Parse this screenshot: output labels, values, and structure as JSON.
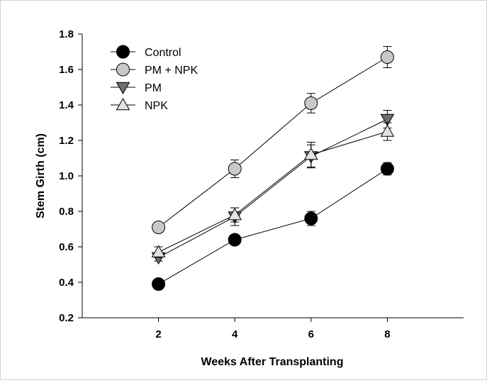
{
  "chart_data": {
    "type": "line",
    "title": "",
    "xlabel": "Weeks After Transplanting",
    "ylabel": "Stem Girth (cm)",
    "xlim": [
      0,
      10
    ],
    "ylim": [
      0.2,
      1.8
    ],
    "xticks": [
      "2",
      "4",
      "6",
      "8"
    ],
    "yticks": [
      "0.2",
      "0.4",
      "0.6",
      "0.8",
      "1.0",
      "1.2",
      "1.4",
      "1.6",
      "1.8"
    ],
    "x": [
      2,
      4,
      6,
      8
    ],
    "grid": false,
    "legend_position": "top-left",
    "series": [
      {
        "name": "Control",
        "marker": "circle",
        "color": "#000000",
        "values": [
          0.39,
          0.64,
          0.76,
          1.04
        ],
        "errors": [
          0.015,
          0.015,
          0.04,
          0.035
        ]
      },
      {
        "name": "PM + NPK",
        "marker": "circle",
        "color": "#c8c8c8",
        "values": [
          0.71,
          1.04,
          1.41,
          1.67
        ],
        "errors": [
          0.01,
          0.05,
          0.055,
          0.06
        ]
      },
      {
        "name": "PM",
        "marker": "triangle-down",
        "color": "#6e6e6e",
        "values": [
          0.54,
          0.77,
          1.11,
          1.32
        ],
        "errors": [
          0.02,
          0.05,
          0.065,
          0.05
        ]
      },
      {
        "name": "NPK",
        "marker": "triangle-up",
        "color": "#e2e2e2",
        "values": [
          0.57,
          0.78,
          1.12,
          1.25
        ],
        "errors": [
          0.03,
          0.04,
          0.07,
          0.05
        ]
      }
    ]
  }
}
